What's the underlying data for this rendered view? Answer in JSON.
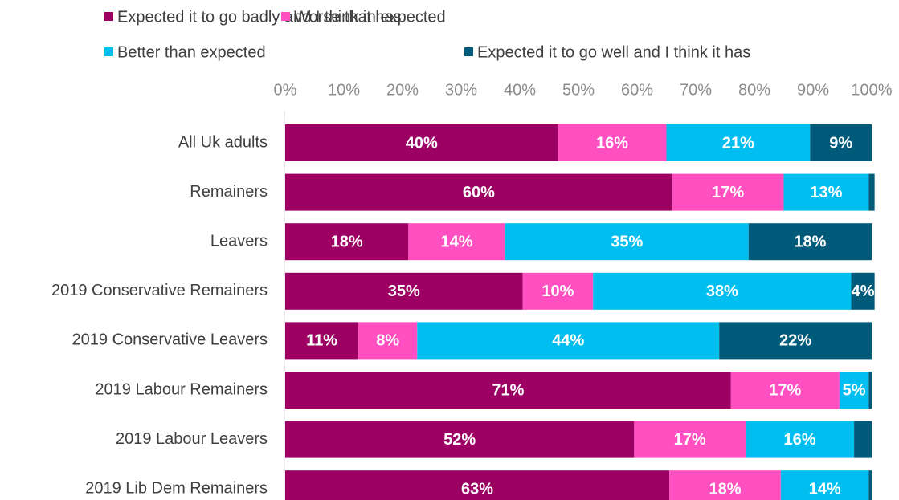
{
  "chart_data": {
    "type": "bar",
    "orientation": "horizontal",
    "stacked": true,
    "title": "",
    "xlabel": "",
    "ylabel": "",
    "xlim": [
      0,
      100
    ],
    "x_ticks": [
      "0%",
      "10%",
      "20%",
      "30%",
      "40%",
      "50%",
      "60%",
      "70%",
      "80%",
      "90%",
      "100%"
    ],
    "legend_position": "top",
    "grid": false,
    "categories": [
      "All Uk adults",
      "Remainers",
      "Leavers",
      "2019 Conservative Remainers",
      "2019 Conservative Leavers",
      "2019 Labour Remainers",
      "2019 Labour Leavers",
      "2019 Lib Dem Remainers"
    ],
    "series": [
      {
        "name": "Expected it to go badly and I think it has",
        "color": "#9b0062",
        "values": [
          46.5,
          66,
          21,
          40.5,
          12.5,
          76,
          59.5,
          65.5
        ],
        "labels": [
          "40%",
          "60%",
          "18%",
          "35%",
          "11%",
          "71%",
          "52%",
          "63%"
        ]
      },
      {
        "name": "Worse than expected",
        "color": "#ff4fc0",
        "values": [
          18.5,
          19,
          16.5,
          12,
          10,
          18.5,
          19,
          19
        ],
        "labels": [
          "16%",
          "17%",
          "14%",
          "10%",
          "8%",
          "17%",
          "17%",
          "18%"
        ]
      },
      {
        "name": "Better than expected",
        "color": "#00bff0",
        "values": [
          24.5,
          14.5,
          41.5,
          44,
          51.5,
          5,
          18.5,
          15
        ],
        "labels": [
          "21%",
          "13%",
          "35%",
          "38%",
          "44%",
          "5%",
          "16%",
          "14%"
        ]
      },
      {
        "name": "Expected it to go well and I think it has",
        "color": "#005a7a",
        "values": [
          10.5,
          1,
          21,
          4,
          26,
          0.5,
          3,
          0.5
        ],
        "labels": [
          "9%",
          "",
          "18%",
          "4%",
          "22%",
          "",
          "",
          ""
        ]
      }
    ]
  }
}
